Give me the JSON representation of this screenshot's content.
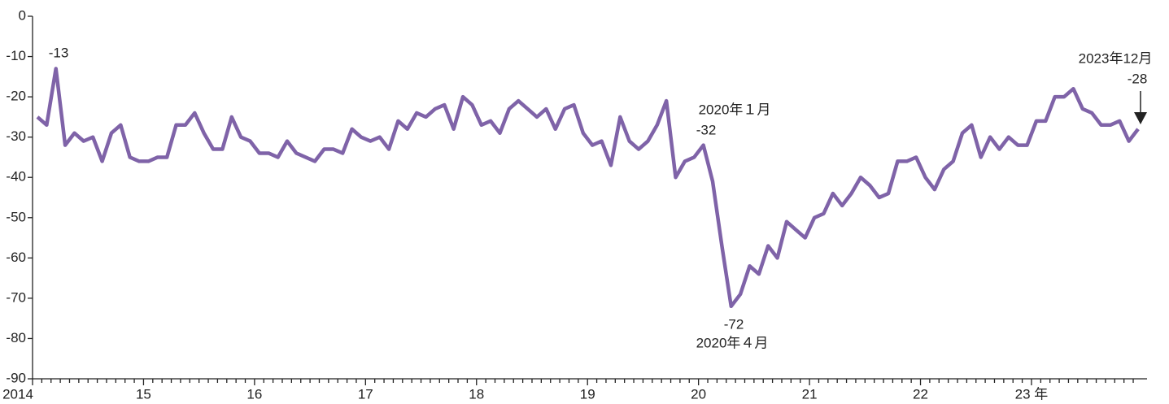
{
  "chart_data": {
    "type": "line",
    "categories": [
      "2014",
      null,
      null,
      null,
      null,
      null,
      null,
      null,
      null,
      null,
      null,
      null,
      "15",
      null,
      null,
      null,
      null,
      null,
      null,
      null,
      null,
      null,
      null,
      null,
      "16",
      null,
      null,
      null,
      null,
      null,
      null,
      null,
      null,
      null,
      null,
      null,
      "17",
      null,
      null,
      null,
      null,
      null,
      null,
      null,
      null,
      null,
      null,
      null,
      "18",
      null,
      null,
      null,
      null,
      null,
      null,
      null,
      null,
      null,
      null,
      null,
      "19",
      null,
      null,
      null,
      null,
      null,
      null,
      null,
      null,
      null,
      null,
      null,
      "20",
      null,
      null,
      null,
      null,
      null,
      null,
      null,
      null,
      null,
      null,
      null,
      "21",
      null,
      null,
      null,
      null,
      null,
      null,
      null,
      null,
      null,
      null,
      null,
      "22",
      null,
      null,
      null,
      null,
      null,
      null,
      null,
      null,
      null,
      null,
      null,
      "23 年",
      null,
      null,
      null,
      null,
      null,
      null,
      null,
      null,
      null,
      null,
      null
    ],
    "series": [
      {
        "color": "#7f63a8",
        "values": [
          -25,
          -27,
          -13,
          -32,
          -29,
          -31,
          -30,
          -36,
          -29,
          -27,
          -35,
          -36,
          -36,
          -35,
          -35,
          -27,
          -27,
          -24,
          -29,
          -33,
          -33,
          -25,
          -30,
          -31,
          -34,
          -34,
          -35,
          -31,
          -34,
          -35,
          -36,
          -33,
          -33,
          -34,
          -28,
          -30,
          -31,
          -30,
          -33,
          -26,
          -28,
          -24,
          -25,
          -23,
          -22,
          -28,
          -20,
          -22,
          -27,
          -26,
          -29,
          -23,
          -21,
          -23,
          -25,
          -23,
          -28,
          -23,
          -22,
          -29,
          -32,
          -31,
          -37,
          -25,
          -31,
          -33,
          -31,
          -27,
          -21,
          -40,
          -36,
          -35,
          -32,
          -41,
          -57,
          -72,
          -69,
          -62,
          -64,
          -57,
          -60,
          -51,
          -53,
          -55,
          -50,
          -49,
          -44,
          -47,
          -44,
          -40,
          -42,
          -45,
          -44,
          -36,
          -36,
          -35,
          -40,
          -43,
          -38,
          -36,
          -29,
          -27,
          -35,
          -30,
          -33,
          -30,
          -32,
          -32,
          -26,
          -26,
          -20,
          -20,
          -18,
          -23,
          -24,
          -27,
          -27,
          -26,
          -31,
          -28
        ]
      }
    ],
    "ylim": [
      -90,
      0
    ],
    "yticks": [
      0,
      -10,
      -20,
      -30,
      -40,
      -50,
      -60,
      -70,
      -80,
      -90
    ],
    "annotations": [
      "-13",
      "2020年１月",
      "-32",
      "-72",
      "2020年４月",
      "2023年12月",
      "-28"
    ]
  }
}
